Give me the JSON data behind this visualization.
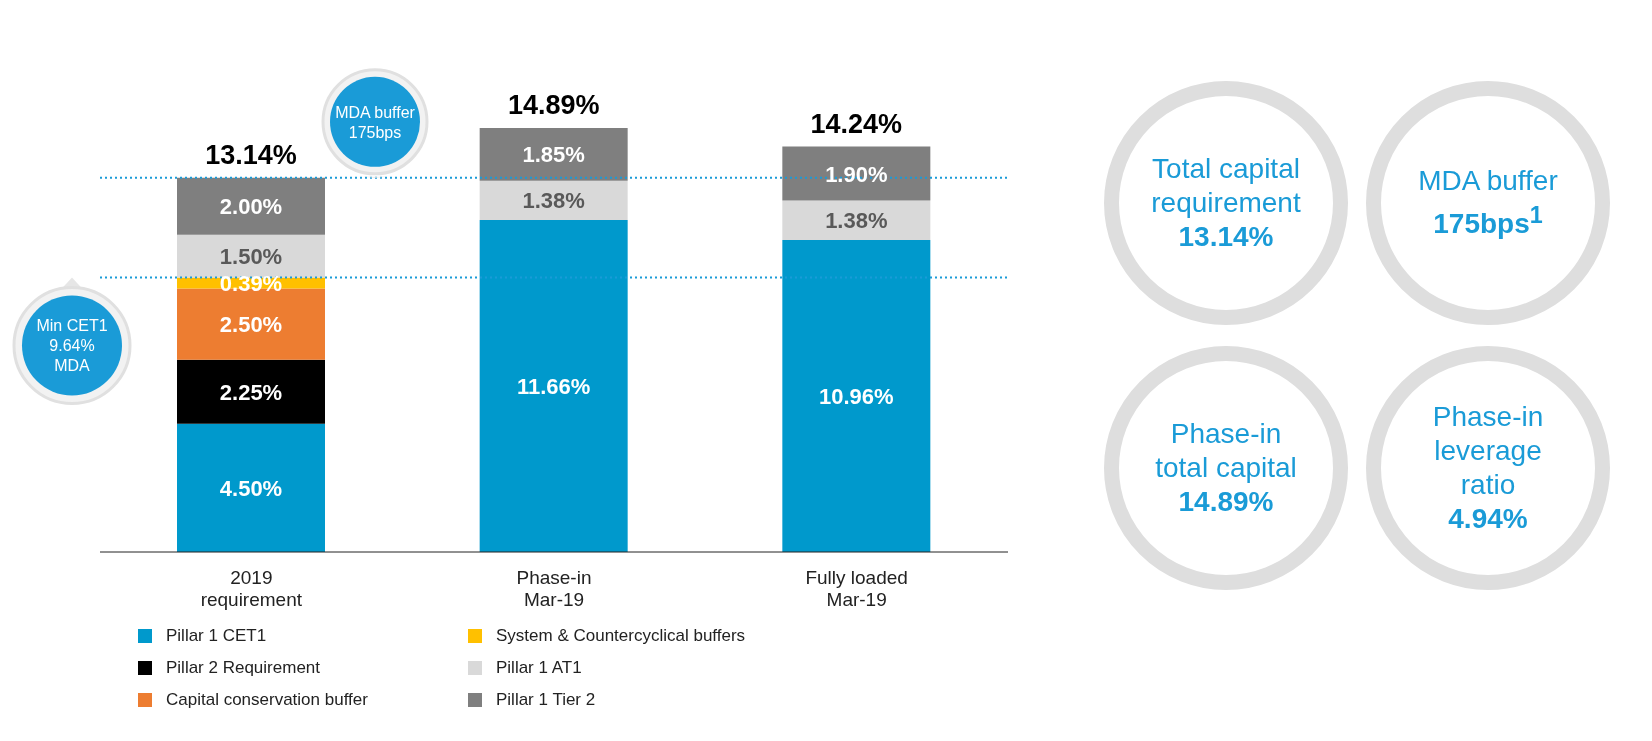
{
  "chart_data": {
    "type": "bar",
    "stacked": true,
    "categories": [
      "2019\nrequirement",
      "Phase-in\nMar-19",
      "Fully loaded\nMar-19"
    ],
    "series": [
      {
        "name": "Pillar 1 CET1",
        "color": "#0099cc",
        "values": [
          4.5,
          11.66,
          10.96
        ],
        "value_labels": [
          "4.50%",
          "11.66%",
          "10.96%"
        ]
      },
      {
        "name": "Pillar 2 Requirement",
        "color": "#000000",
        "values": [
          2.25,
          null,
          null
        ],
        "value_labels": [
          "2.25%",
          null,
          null
        ]
      },
      {
        "name": "Capital conservation buffer",
        "color": "#ed7d31",
        "values": [
          2.5,
          null,
          null
        ],
        "value_labels": [
          "2.50%",
          null,
          null
        ]
      },
      {
        "name": "System & Countercyclical buffers",
        "color": "#ffc000",
        "values": [
          0.39,
          null,
          null
        ],
        "value_labels": [
          "0.39%",
          null,
          null
        ]
      },
      {
        "name": "Pillar 1 AT1",
        "color": "#d9d9d9",
        "values": [
          1.5,
          1.38,
          1.38
        ],
        "value_labels": [
          "1.50%",
          "1.38%",
          "1.38%"
        ]
      },
      {
        "name": "Pillar 1 Tier 2",
        "color": "#7f7f7f",
        "values": [
          2.0,
          1.85,
          1.9
        ],
        "value_labels": [
          "2.00%",
          "1.85%",
          "1.90%"
        ]
      }
    ],
    "totals": [
      "13.14%",
      "14.89%",
      "14.24%"
    ],
    "ref_lines": [
      {
        "axis": "y",
        "value": 9.64,
        "label": "Min CET1\n9.64%\nMDA",
        "color": "#1a9bd7",
        "line_style": "dotted"
      },
      {
        "axis": "y",
        "value": 13.14,
        "label": "MDA buffer\n175bps",
        "color": "#1a9bd7",
        "line_style": "dotted"
      }
    ],
    "legend": "bottom",
    "grid": false,
    "annotations": [
      "Total capital\nrequirement\n13.14%",
      "MDA buffer\n175bps$^{1}$",
      "Phase-in\ntotal capital\n14.89%",
      "Phase-in\nleverage\nratio\n4.94%"
    ]
  }
}
